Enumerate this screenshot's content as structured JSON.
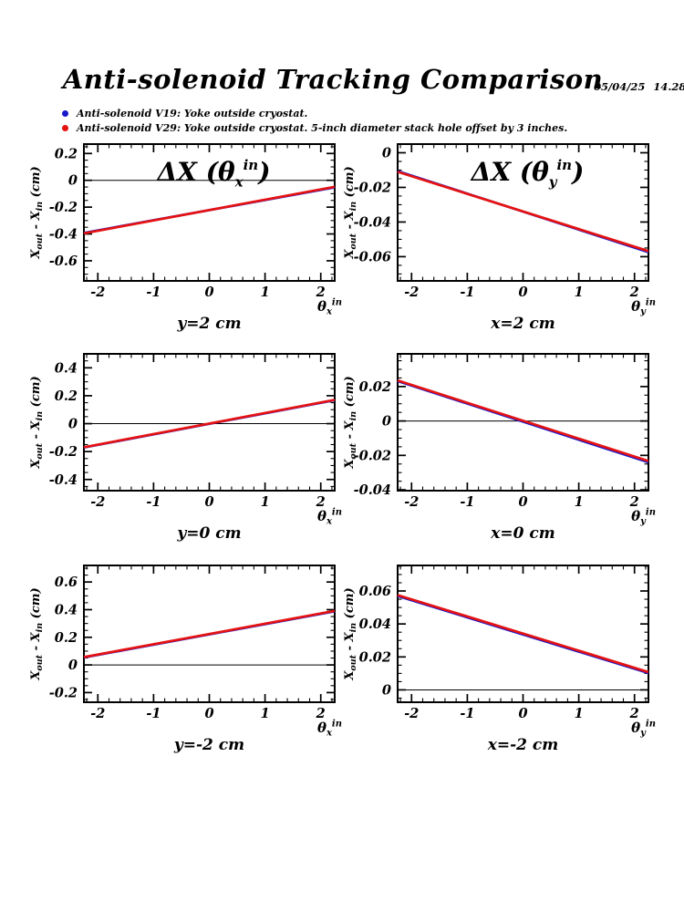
{
  "header": {
    "title": "Anti-solenoid Tracking Comparison",
    "date": "05/04/25",
    "time": "14.28"
  },
  "legend": {
    "items": [
      {
        "marker_color": "#1616cc",
        "label": "Anti-solenoid V19: Yoke outside cryostat."
      },
      {
        "marker_color": "#e51212",
        "label": "Anti-solenoid V29: Yoke outside cryostat. 5-inch diameter stack hole offset by 3 inches."
      }
    ]
  },
  "styles": {
    "axis_color": "#000000",
    "v19_color": "#1616cc",
    "v29_color": "#e51212"
  },
  "chart_data": [
    {
      "type": "line",
      "inplot_title": {
        "parts": [
          {
            "t": "ΔX (θ"
          },
          {
            "t": "x",
            "pos": "sub"
          },
          {
            "t": "in",
            "pos": "sup"
          },
          {
            "t": ")"
          }
        ]
      },
      "caption": "y=2 cm",
      "ylabel": {
        "parts": [
          {
            "t": "X"
          },
          {
            "t": "out",
            "pos": "sub"
          },
          {
            "t": " - X"
          },
          {
            "t": "in",
            "pos": "sub"
          },
          {
            "t": " (cm)"
          }
        ]
      },
      "xlabel": {
        "parts": [
          {
            "t": "θ"
          },
          {
            "t": "x",
            "pos": "sub"
          },
          {
            "t": "in",
            "pos": "sup"
          }
        ]
      },
      "xlim": [
        -2.25,
        2.25
      ],
      "ylim": [
        -0.75,
        0.27
      ],
      "xtick_values": [
        -2,
        -1,
        0,
        1,
        2
      ],
      "xtick_labels": [
        "-2",
        "-1",
        "0",
        "1",
        "2"
      ],
      "ytick_values": [
        0.2,
        0,
        -0.2,
        -0.4,
        -0.6
      ],
      "ytick_labels": [
        "0.2",
        "0",
        "-0.2",
        "-0.4",
        "-0.6"
      ],
      "zero_line": true,
      "grid": false,
      "series": [
        {
          "name": "Anti-solenoid V19",
          "color": "#1616cc",
          "points": [
            [
              -2.25,
              -0.392
            ],
            [
              2.25,
              -0.052
            ]
          ]
        },
        {
          "name": "Anti-solenoid V29",
          "color": "#e51212",
          "points": [
            [
              -2.25,
              -0.396
            ],
            [
              2.25,
              -0.048
            ]
          ]
        }
      ]
    },
    {
      "type": "line",
      "inplot_title": {
        "parts": [
          {
            "t": "ΔX (θ"
          },
          {
            "t": "y",
            "pos": "sub"
          },
          {
            "t": "in",
            "pos": "sup"
          },
          {
            "t": ")"
          }
        ]
      },
      "caption": "x=2 cm",
      "ylabel": {
        "parts": [
          {
            "t": "X"
          },
          {
            "t": "out",
            "pos": "sub"
          },
          {
            "t": " - X"
          },
          {
            "t": "in",
            "pos": "sub"
          },
          {
            "t": " (cm)"
          }
        ]
      },
      "xlabel": {
        "parts": [
          {
            "t": "θ"
          },
          {
            "t": "y",
            "pos": "sub"
          },
          {
            "t": "in",
            "pos": "sup"
          }
        ]
      },
      "xlim": [
        -2.25,
        2.25
      ],
      "ylim": [
        -0.074,
        0.005
      ],
      "xtick_values": [
        -2,
        -1,
        0,
        1,
        2
      ],
      "xtick_labels": [
        "-2",
        "-1",
        "0",
        "1",
        "2"
      ],
      "ytick_values": [
        0,
        -0.02,
        -0.04,
        -0.06
      ],
      "ytick_labels": [
        "0",
        "-0.02",
        "-0.04",
        "-0.06"
      ],
      "zero_line": false,
      "grid": false,
      "series": [
        {
          "name": "Anti-solenoid V19",
          "color": "#1616cc",
          "points": [
            [
              -2.25,
              -0.0106
            ],
            [
              2.25,
              -0.0574
            ]
          ]
        },
        {
          "name": "Anti-solenoid V29",
          "color": "#e51212",
          "points": [
            [
              -2.25,
              -0.011
            ],
            [
              2.25,
              -0.0568
            ]
          ]
        }
      ]
    },
    {
      "type": "line",
      "inplot_title": null,
      "caption": "y=0 cm",
      "ylabel": {
        "parts": [
          {
            "t": "X"
          },
          {
            "t": "out",
            "pos": "sub"
          },
          {
            "t": " - X"
          },
          {
            "t": "in",
            "pos": "sub"
          },
          {
            "t": " (cm)"
          }
        ]
      },
      "xlabel": {
        "parts": [
          {
            "t": "θ"
          },
          {
            "t": "x",
            "pos": "sub"
          },
          {
            "t": "in",
            "pos": "sup"
          }
        ]
      },
      "xlim": [
        -2.25,
        2.25
      ],
      "ylim": [
        -0.48,
        0.5
      ],
      "xtick_values": [
        -2,
        -1,
        0,
        1,
        2
      ],
      "xtick_labels": [
        "-2",
        "-1",
        "0",
        "1",
        "2"
      ],
      "ytick_values": [
        0.4,
        0.2,
        0,
        -0.2,
        -0.4
      ],
      "ytick_labels": [
        "0.4",
        "0.2",
        "0",
        "-0.2",
        "-0.4"
      ],
      "zero_line": true,
      "grid": false,
      "series": [
        {
          "name": "Anti-solenoid V19",
          "color": "#1616cc",
          "points": [
            [
              -2.25,
              -0.171
            ],
            [
              2.25,
              0.168
            ]
          ]
        },
        {
          "name": "Anti-solenoid V29",
          "color": "#e51212",
          "points": [
            [
              -2.25,
              -0.169
            ],
            [
              2.25,
              0.171
            ]
          ]
        }
      ]
    },
    {
      "type": "line",
      "inplot_title": null,
      "caption": "x=0 cm",
      "ylabel": {
        "parts": [
          {
            "t": "X"
          },
          {
            "t": "out",
            "pos": "sub"
          },
          {
            "t": " - X"
          },
          {
            "t": "in",
            "pos": "sub"
          },
          {
            "t": " (cm)"
          }
        ]
      },
      "xlabel": {
        "parts": [
          {
            "t": "θ"
          },
          {
            "t": "y",
            "pos": "sub"
          },
          {
            "t": "in",
            "pos": "sup"
          }
        ]
      },
      "xlim": [
        -2.25,
        2.25
      ],
      "ylim": [
        -0.0405,
        0.039
      ],
      "xtick_values": [
        -2,
        -1,
        0,
        1,
        2
      ],
      "xtick_labels": [
        "-2",
        "-1",
        "0",
        "1",
        "2"
      ],
      "ytick_values": [
        0.02,
        0,
        -0.02,
        -0.04
      ],
      "ytick_labels": [
        "0.02",
        "0",
        "-0.02",
        "-0.04"
      ],
      "zero_line": true,
      "grid": false,
      "series": [
        {
          "name": "Anti-solenoid V19",
          "color": "#1616cc",
          "points": [
            [
              -2.25,
              0.0232
            ],
            [
              2.25,
              -0.024
            ]
          ]
        },
        {
          "name": "Anti-solenoid V29",
          "color": "#e51212",
          "points": [
            [
              -2.25,
              0.0236
            ],
            [
              2.25,
              -0.0233
            ]
          ]
        }
      ]
    },
    {
      "type": "line",
      "inplot_title": null,
      "caption": "y=-2 cm",
      "ylabel": {
        "parts": [
          {
            "t": "X"
          },
          {
            "t": "out",
            "pos": "sub"
          },
          {
            "t": " - X"
          },
          {
            "t": "in",
            "pos": "sub"
          },
          {
            "t": " (cm)"
          }
        ]
      },
      "xlabel": {
        "parts": [
          {
            "t": "θ"
          },
          {
            "t": "x",
            "pos": "sub"
          },
          {
            "t": "in",
            "pos": "sup"
          }
        ]
      },
      "xlim": [
        -2.25,
        2.25
      ],
      "ylim": [
        -0.27,
        0.72
      ],
      "xtick_values": [
        -2,
        -1,
        0,
        1,
        2
      ],
      "xtick_labels": [
        "-2",
        "-1",
        "0",
        "1",
        "2"
      ],
      "ytick_values": [
        0.6,
        0.4,
        0.2,
        0,
        -0.2
      ],
      "ytick_labels": [
        "0.6",
        "0.4",
        "0.2",
        "0",
        "-0.2"
      ],
      "zero_line": true,
      "grid": false,
      "series": [
        {
          "name": "Anti-solenoid V19",
          "color": "#1616cc",
          "points": [
            [
              -2.25,
              0.054
            ],
            [
              2.25,
              0.388
            ]
          ]
        },
        {
          "name": "Anti-solenoid V29",
          "color": "#e51212",
          "points": [
            [
              -2.25,
              0.057
            ],
            [
              2.25,
              0.391
            ]
          ]
        }
      ]
    },
    {
      "type": "line",
      "inplot_title": null,
      "caption": "x=-2 cm",
      "ylabel": {
        "parts": [
          {
            "t": "X"
          },
          {
            "t": "out",
            "pos": "sub"
          },
          {
            "t": " - X"
          },
          {
            "t": "in",
            "pos": "sub"
          },
          {
            "t": " (cm)"
          }
        ]
      },
      "xlabel": {
        "parts": [
          {
            "t": "θ"
          },
          {
            "t": "y",
            "pos": "sub"
          },
          {
            "t": "in",
            "pos": "sup"
          }
        ]
      },
      "xlim": [
        -2.25,
        2.25
      ],
      "ylim": [
        -0.0075,
        0.0755
      ],
      "xtick_values": [
        -2,
        -1,
        0,
        1,
        2
      ],
      "xtick_labels": [
        "-2",
        "-1",
        "0",
        "1",
        "2"
      ],
      "ytick_values": [
        0.06,
        0.04,
        0.02,
        0
      ],
      "ytick_labels": [
        "0.06",
        "0.04",
        "0.02",
        "0"
      ],
      "zero_line": true,
      "grid": false,
      "series": [
        {
          "name": "Anti-solenoid V19",
          "color": "#1616cc",
          "points": [
            [
              -2.25,
              0.057
            ],
            [
              2.25,
              0.0102
            ]
          ]
        },
        {
          "name": "Anti-solenoid V29",
          "color": "#e51212",
          "points": [
            [
              -2.25,
              0.0575
            ],
            [
              2.25,
              0.0108
            ]
          ]
        }
      ]
    }
  ]
}
